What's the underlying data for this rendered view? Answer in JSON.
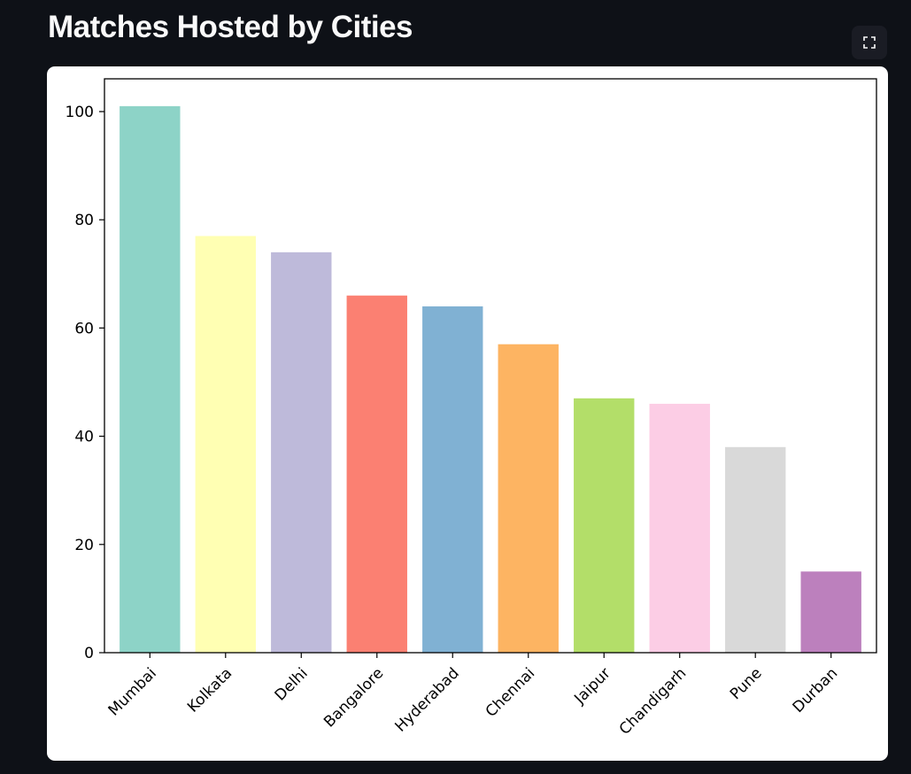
{
  "page": {
    "title": "Matches Hosted by Cities"
  },
  "toolbar": {
    "fullscreen_icon": "fullscreen-icon"
  },
  "chart_data": {
    "type": "bar",
    "title": "",
    "xlabel": "",
    "ylabel": "",
    "categories": [
      "Mumbai",
      "Kolkata",
      "Delhi",
      "Bangalore",
      "Hyderabad",
      "Chennai",
      "Jaipur",
      "Chandigarh",
      "Pune",
      "Durban"
    ],
    "values": [
      101,
      77,
      74,
      66,
      64,
      57,
      47,
      46,
      38,
      15
    ],
    "colors": [
      "#8dd3c7",
      "#ffffb3",
      "#bebada",
      "#fb8072",
      "#80b1d3",
      "#fdb462",
      "#b3de69",
      "#fccde5",
      "#d9d9d9",
      "#bc80bd"
    ],
    "ylim": [
      0,
      106.05
    ],
    "yticks": [
      0,
      20,
      40,
      60,
      80,
      100
    ],
    "grid": false,
    "legend": "none"
  }
}
